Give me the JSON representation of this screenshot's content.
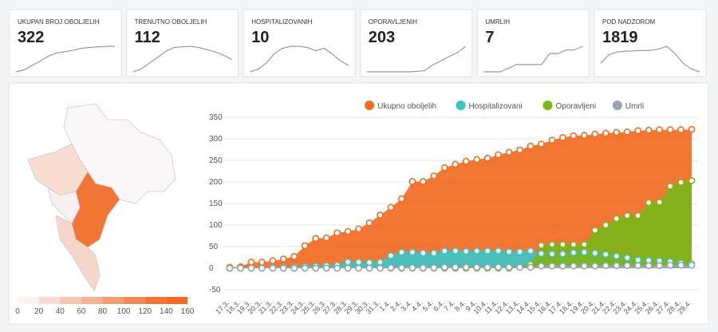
{
  "cards": [
    {
      "label": "UKUPAN BROJ OBOLJELIH",
      "value": "322",
      "trend": [
        2,
        27,
        85,
        141,
        201,
        241,
        255,
        274,
        297,
        308,
        315,
        320,
        322
      ]
    },
    {
      "label": "TRENUTNO OBOLJELIH",
      "value": "112",
      "trend": [
        2,
        27,
        80,
        130,
        185,
        220,
        225,
        230,
        220,
        200,
        180,
        150,
        112
      ]
    },
    {
      "label": "HOSPITALIZOVANIH",
      "value": "10",
      "trend": [
        0,
        4,
        14,
        29,
        37,
        40,
        40,
        38,
        33,
        37,
        28,
        17,
        10
      ]
    },
    {
      "label": "OPORAVLJENIH",
      "value": "203",
      "trend": [
        0,
        0,
        0,
        0,
        0,
        0,
        3,
        9,
        55,
        88,
        122,
        153,
        203
      ]
    },
    {
      "label": "UMRLIH",
      "value": "7",
      "trend": [
        0,
        0,
        0,
        1,
        2,
        2,
        2,
        2,
        5,
        5,
        6,
        6,
        7
      ]
    },
    {
      "label": "POD NADZOROM",
      "value": "1819",
      "trend": [
        900,
        1500,
        1700,
        1750,
        1780,
        1800,
        1810,
        1900,
        2100,
        1600,
        900,
        500,
        300
      ]
    }
  ],
  "map": {
    "legend_colors": [
      "#fbf3f0",
      "#f8dccf",
      "#f6c8b2",
      "#f4b393",
      "#f39e73",
      "#f28955",
      "#f27536",
      "#f26b21"
    ],
    "ticks": [
      0,
      20,
      40,
      60,
      80,
      100,
      120,
      140,
      160
    ]
  },
  "chart_data": {
    "type": "area",
    "categories": [
      "17.3.",
      "18.3.",
      "19.3.",
      "20.3.",
      "21.3.",
      "22.3.",
      "23.3.",
      "24.3.",
      "25.3.",
      "26.3.",
      "27.3.",
      "28.3.",
      "29.3.",
      "30.3.",
      "31.3.",
      "1.4.",
      "2.4.",
      "3.4.",
      "4.4.",
      "5.4.",
      "6.4.",
      "7.4.",
      "8.4.",
      "9.4.",
      "10.4.",
      "11.4.",
      "12.4.",
      "13.4.",
      "14.4.",
      "15.4.",
      "16.4.",
      "17.4.",
      "18.4.",
      "19.4.",
      "20.4.",
      "21.4.",
      "22.4.",
      "23.4.",
      "24.4.",
      "25.4.",
      "26.4.",
      "27.4.",
      "28.4.",
      "29.4."
    ],
    "series": [
      {
        "name": "Ukupno oboljelih",
        "color": "#f26b21",
        "values": [
          2,
          3,
          14,
          14,
          17,
          21,
          27,
          52,
          69,
          70,
          82,
          85,
          91,
          105,
          123,
          141,
          161,
          201,
          201,
          214,
          233,
          241,
          248,
          252,
          255,
          263,
          269,
          274,
          283,
          288,
          297,
          303,
          307,
          308,
          311,
          313,
          315,
          316,
          319,
          320,
          321,
          321,
          321,
          322
        ]
      },
      {
        "name": "Hospitalizovani",
        "color": "#3cc4c4",
        "values": [
          0,
          0,
          0,
          1,
          1,
          2,
          3,
          4,
          5,
          6,
          7,
          14,
          14,
          13,
          14,
          29,
          37,
          37,
          35,
          35,
          40,
          40,
          39,
          40,
          40,
          40,
          38,
          38,
          40,
          34,
          33,
          33,
          36,
          37,
          35,
          32,
          28,
          24,
          19,
          18,
          17,
          15,
          12,
          10
        ]
      },
      {
        "name": "Oporavljeni",
        "color": "#7cb518",
        "values": [
          0,
          0,
          0,
          0,
          0,
          0,
          0,
          0,
          0,
          0,
          0,
          0,
          0,
          0,
          0,
          0,
          0,
          0,
          0,
          0,
          0,
          0,
          0,
          0,
          0,
          0,
          0,
          3,
          9,
          53,
          55,
          55,
          55,
          55,
          88,
          100,
          115,
          122,
          122,
          152,
          153,
          190,
          199,
          203
        ]
      },
      {
        "name": "Umrli",
        "color": "#9aa5b1",
        "values": [
          0,
          0,
          0,
          0,
          0,
          0,
          0,
          0,
          0,
          0,
          0,
          0,
          0,
          0,
          0,
          1,
          1,
          1,
          1,
          1,
          2,
          2,
          2,
          2,
          2,
          2,
          2,
          2,
          2,
          5,
          5,
          5,
          5,
          5,
          5,
          6,
          6,
          6,
          6,
          6,
          6,
          7,
          7,
          7
        ]
      }
    ],
    "ylim": [
      -50,
      350
    ],
    "yticks": [
      -50,
      0,
      50,
      100,
      150,
      200,
      250,
      300,
      350
    ],
    "grid": true,
    "legend": "top"
  }
}
